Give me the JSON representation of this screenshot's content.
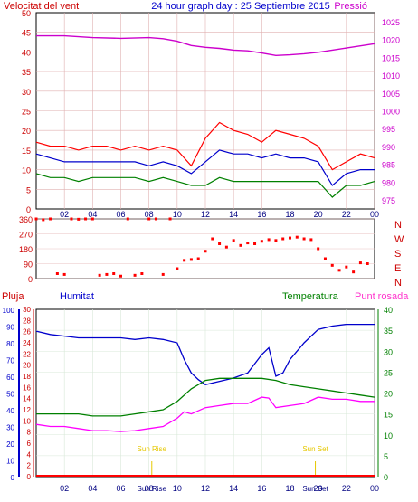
{
  "chart_data": [
    {
      "type": "line",
      "panel": "wind-pressure",
      "title": "24 hour graph day : 25 Septiembre 2015",
      "left_label": "Velocitat del vent",
      "right_label": "Pressió",
      "colors": {
        "gust": "#ff0000",
        "speed": "#0000cc",
        "direction_low": "#008000",
        "pressure": "#cc00cc",
        "title": "#0000cc",
        "left_axis": "#cc0000",
        "right_axis": "#cc00cc"
      },
      "x_ticks": [
        "02",
        "04",
        "06",
        "08",
        "10",
        "12",
        "14",
        "16",
        "18",
        "20",
        "22",
        "00"
      ],
      "left_ticks": [
        "0",
        "5",
        "10",
        "15",
        "20",
        "25",
        "30",
        "35",
        "40",
        "45",
        "50"
      ],
      "right_ticks": [
        "975",
        "980",
        "985",
        "990",
        "995",
        "1000",
        "1005",
        "1010",
        "1015",
        "1020",
        "1025"
      ],
      "ylim_left": [
        0,
        50
      ],
      "ylim_right": [
        972.5,
        1027.5
      ],
      "series": [
        {
          "key": "pressure",
          "axis": "right",
          "x": [
            0,
            2,
            4,
            6,
            8,
            9,
            10,
            11,
            12,
            13,
            14,
            15,
            16,
            17,
            18,
            19,
            20,
            21,
            22,
            23,
            24
          ],
          "y": [
            1021,
            1021,
            1020.5,
            1020.3,
            1020.5,
            1020.2,
            1019.5,
            1018.3,
            1017.8,
            1017.5,
            1017,
            1016.8,
            1016.2,
            1015.5,
            1015.7,
            1016,
            1016.4,
            1017,
            1017.6,
            1018.2,
            1018.8
          ]
        },
        {
          "key": "gust",
          "axis": "left",
          "x": [
            0,
            1,
            2,
            3,
            4,
            5,
            6,
            7,
            8,
            9,
            10,
            11,
            12,
            13,
            14,
            15,
            16,
            17,
            18,
            19,
            20,
            21,
            22,
            23,
            24
          ],
          "y": [
            17,
            16,
            16,
            15,
            16,
            16,
            15,
            16,
            15,
            16,
            15,
            11,
            18,
            22,
            20,
            19,
            17,
            20,
            19,
            18,
            16,
            10,
            12,
            14,
            13
          ]
        },
        {
          "key": "speed",
          "axis": "left",
          "x": [
            0,
            1,
            2,
            3,
            4,
            5,
            6,
            7,
            8,
            9,
            10,
            11,
            12,
            13,
            14,
            15,
            16,
            17,
            18,
            19,
            20,
            21,
            22,
            23,
            24
          ],
          "y": [
            14,
            13,
            12,
            12,
            12,
            12,
            12,
            12,
            11,
            12,
            11,
            9,
            12,
            15,
            14,
            14,
            13,
            14,
            13,
            13,
            12,
            6,
            9,
            10,
            10
          ]
        },
        {
          "key": "direction_low",
          "axis": "left",
          "x": [
            0,
            1,
            2,
            3,
            4,
            5,
            6,
            7,
            8,
            9,
            10,
            11,
            12,
            13,
            14,
            15,
            16,
            17,
            18,
            19,
            20,
            21,
            22,
            23,
            24
          ],
          "y": [
            9,
            8,
            8,
            7,
            8,
            8,
            8,
            8,
            7,
            8,
            7,
            6,
            6,
            8,
            7,
            7,
            7,
            7,
            7,
            7,
            7,
            3,
            6,
            6,
            7
          ]
        }
      ]
    },
    {
      "type": "scatter",
      "panel": "wind-direction",
      "y_ticks": [
        "0",
        "90",
        "180",
        "270",
        "360"
      ],
      "right_labels": [
        "N",
        "W",
        "S",
        "E",
        "N"
      ],
      "color": "#ff0000",
      "ylim": [
        0,
        360
      ],
      "x": [
        0,
        0.5,
        1,
        1.5,
        2,
        2.5,
        3,
        3.5,
        4,
        4.5,
        5,
        5.5,
        6,
        6.5,
        7,
        7.5,
        8,
        8.5,
        9,
        9.5,
        10,
        10.5,
        11,
        11.5,
        12,
        12.5,
        13,
        13.5,
        14,
        14.5,
        15,
        15.5,
        16,
        16.5,
        17,
        17.5,
        18,
        18.5,
        19,
        19.5,
        20,
        20.5,
        21,
        21.5,
        22,
        22.5,
        23,
        23.5
      ],
      "y": [
        360,
        355,
        360,
        30,
        25,
        360,
        358,
        360,
        360,
        20,
        25,
        30,
        15,
        360,
        20,
        30,
        360,
        360,
        25,
        360,
        60,
        110,
        115,
        120,
        165,
        240,
        210,
        190,
        230,
        200,
        215,
        210,
        225,
        235,
        230,
        240,
        245,
        250,
        240,
        235,
        180,
        120,
        80,
        50,
        70,
        40,
        95,
        90
      ]
    },
    {
      "type": "line",
      "panel": "humidity-temperature",
      "labels": {
        "rain": "Pluja",
        "humidity": "Humitat",
        "temperature": "Temperatura",
        "dewpoint": "Punt rosada"
      },
      "colors": {
        "rain": "#ff0000",
        "humidity": "#0000cc",
        "temperature": "#008000",
        "dewpoint": "#ff00ff",
        "sun": "#e6c800"
      },
      "x_ticks": [
        "02",
        "04",
        "06",
        "08",
        "10",
        "12",
        "14",
        "16",
        "18",
        "20",
        "22",
        "00"
      ],
      "axis1_ticks": [
        "0",
        "10",
        "20",
        "30",
        "40",
        "50",
        "60",
        "70",
        "80",
        "90",
        "100"
      ],
      "axis2_ticks": [
        "0",
        "2",
        "4",
        "6",
        "8",
        "10",
        "12",
        "14",
        "16",
        "18",
        "20",
        "22",
        "24",
        "26",
        "28",
        "30"
      ],
      "axis3_ticks": [
        "0",
        "5",
        "10",
        "15",
        "20",
        "25",
        "30",
        "35",
        "40"
      ],
      "ylim_humidity": [
        0,
        100
      ],
      "ylim_temperature": [
        0,
        40
      ],
      "annotations": {
        "sun_rise": "Sun Rise",
        "sun_set": "Sun Set"
      },
      "sun_rise_x": 8.2,
      "sun_set_x": 19.8,
      "series": [
        {
          "key": "humidity",
          "x": [
            0,
            1,
            2,
            3,
            4,
            5,
            6,
            7,
            8,
            9,
            10,
            10.5,
            11,
            11.5,
            12,
            13,
            14,
            15,
            16,
            16.5,
            17,
            17.5,
            18,
            19,
            20,
            21,
            22,
            23,
            24
          ],
          "y": [
            87,
            85,
            84,
            83,
            83,
            83,
            83,
            82,
            83,
            82,
            80,
            70,
            62,
            58,
            55,
            57,
            59,
            62,
            73,
            77,
            60,
            62,
            70,
            80,
            88,
            90,
            91,
            91,
            91
          ]
        },
        {
          "key": "temperature",
          "x": [
            0,
            1,
            2,
            3,
            4,
            5,
            6,
            7,
            8,
            9,
            10,
            11,
            12,
            13,
            14,
            15,
            16,
            17,
            18,
            19,
            20,
            21,
            22,
            23,
            24
          ],
          "y": [
            15,
            15,
            15,
            15,
            14.5,
            14.5,
            14.5,
            15,
            15.5,
            16,
            18,
            21,
            23,
            23.5,
            23.5,
            23.5,
            23.5,
            23,
            22,
            21.5,
            21,
            20.5,
            20,
            19.5,
            19
          ]
        },
        {
          "key": "dewpoint",
          "x": [
            0,
            1,
            2,
            3,
            4,
            5,
            6,
            7,
            8,
            9,
            10,
            10.5,
            11,
            12,
            13,
            14,
            15,
            16,
            16.5,
            17,
            18,
            19,
            20,
            21,
            22,
            23,
            24
          ],
          "y": [
            12.5,
            12,
            12,
            11.5,
            11,
            11,
            10.8,
            11,
            11.5,
            12,
            14,
            15.5,
            15,
            16.5,
            17,
            17.5,
            17.5,
            19,
            18.8,
            16.5,
            17,
            17.5,
            19,
            18.5,
            18.5,
            18,
            18
          ]
        },
        {
          "key": "rain",
          "x": [
            0,
            24
          ],
          "y": [
            0,
            0
          ]
        }
      ]
    }
  ]
}
